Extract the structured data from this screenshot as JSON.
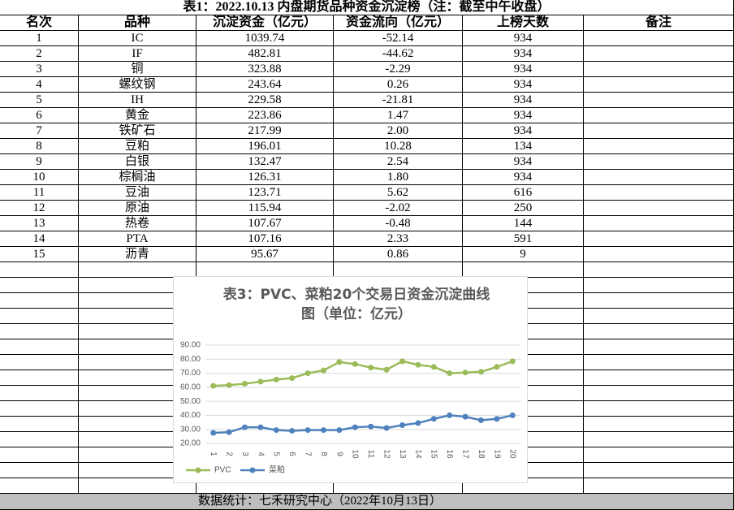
{
  "table": {
    "title": "表1：2022.10.13 内盘期货品种资金沉淀榜（注：截至中午收盘）",
    "headers": [
      "名次",
      "品种",
      "沉淀资金（亿元）",
      "资金流向（亿元）",
      "上榜天数",
      "备注"
    ],
    "rows": [
      [
        "1",
        "IC",
        "1039.74",
        "-52.14",
        "934"
      ],
      [
        "2",
        "IF",
        "482.81",
        "-44.62",
        "934"
      ],
      [
        "3",
        "铜",
        "323.88",
        "-2.29",
        "934"
      ],
      [
        "4",
        "螺纹钢",
        "243.64",
        "0.26",
        "934"
      ],
      [
        "5",
        "IH",
        "229.58",
        "-21.81",
        "934"
      ],
      [
        "6",
        "黄金",
        "223.86",
        "1.47",
        "934"
      ],
      [
        "7",
        "铁矿石",
        "217.99",
        "2.00",
        "934"
      ],
      [
        "8",
        "豆粕",
        "196.01",
        "10.28",
        "134"
      ],
      [
        "9",
        "白银",
        "132.47",
        "2.54",
        "934"
      ],
      [
        "10",
        "棕榈油",
        "126.31",
        "1.80",
        "934"
      ],
      [
        "11",
        "豆油",
        "123.71",
        "5.62",
        "616"
      ],
      [
        "12",
        "原油",
        "115.94",
        "-2.02",
        "250"
      ],
      [
        "13",
        "热卷",
        "107.67",
        "-0.48",
        "144"
      ],
      [
        "14",
        "PTA",
        "107.16",
        "2.33",
        "591"
      ],
      [
        "15",
        "沥青",
        "95.67",
        "0.86",
        "9"
      ]
    ],
    "footer": "数据统计：七禾研究中心（2022年10月13日）"
  },
  "chart_data": {
    "type": "line",
    "title": "表3：PVC、菜粕20个交易日资金沉淀曲线图（单位：亿元）",
    "categories": [
      "1",
      "2",
      "3",
      "4",
      "5",
      "6",
      "7",
      "8",
      "9",
      "10",
      "11",
      "12",
      "13",
      "14",
      "15",
      "16",
      "17",
      "18",
      "19",
      "20"
    ],
    "series": [
      {
        "name": "PVC",
        "color": "#9bbb59",
        "values": [
          61,
          61.5,
          62.5,
          64,
          65.5,
          66.5,
          70,
          72,
          78,
          76.5,
          74,
          72.5,
          78.5,
          76,
          74.5,
          70,
          70.5,
          71,
          74.5,
          78.5
        ]
      },
      {
        "name": "菜粕",
        "color": "#4f81bd",
        "values": [
          27.5,
          28,
          31.5,
          31.5,
          29.5,
          29,
          29.5,
          29.5,
          29.5,
          31.5,
          32,
          31,
          33,
          34.5,
          37.5,
          40,
          39,
          36.5,
          37.5,
          40
        ]
      }
    ],
    "ylim": [
      20,
      90
    ],
    "yticks": [
      {
        "value": 20,
        "label": "20.00"
      },
      {
        "value": 30,
        "label": "30.00"
      },
      {
        "value": 40,
        "label": "40.00"
      },
      {
        "value": 50,
        "label": "50.00"
      },
      {
        "value": 60,
        "label": "60.00"
      },
      {
        "value": 70,
        "label": "70.00"
      },
      {
        "value": 80,
        "label": "80.00"
      },
      {
        "value": 90,
        "label": "90.00"
      }
    ],
    "grid": true,
    "legend": "bottom"
  }
}
